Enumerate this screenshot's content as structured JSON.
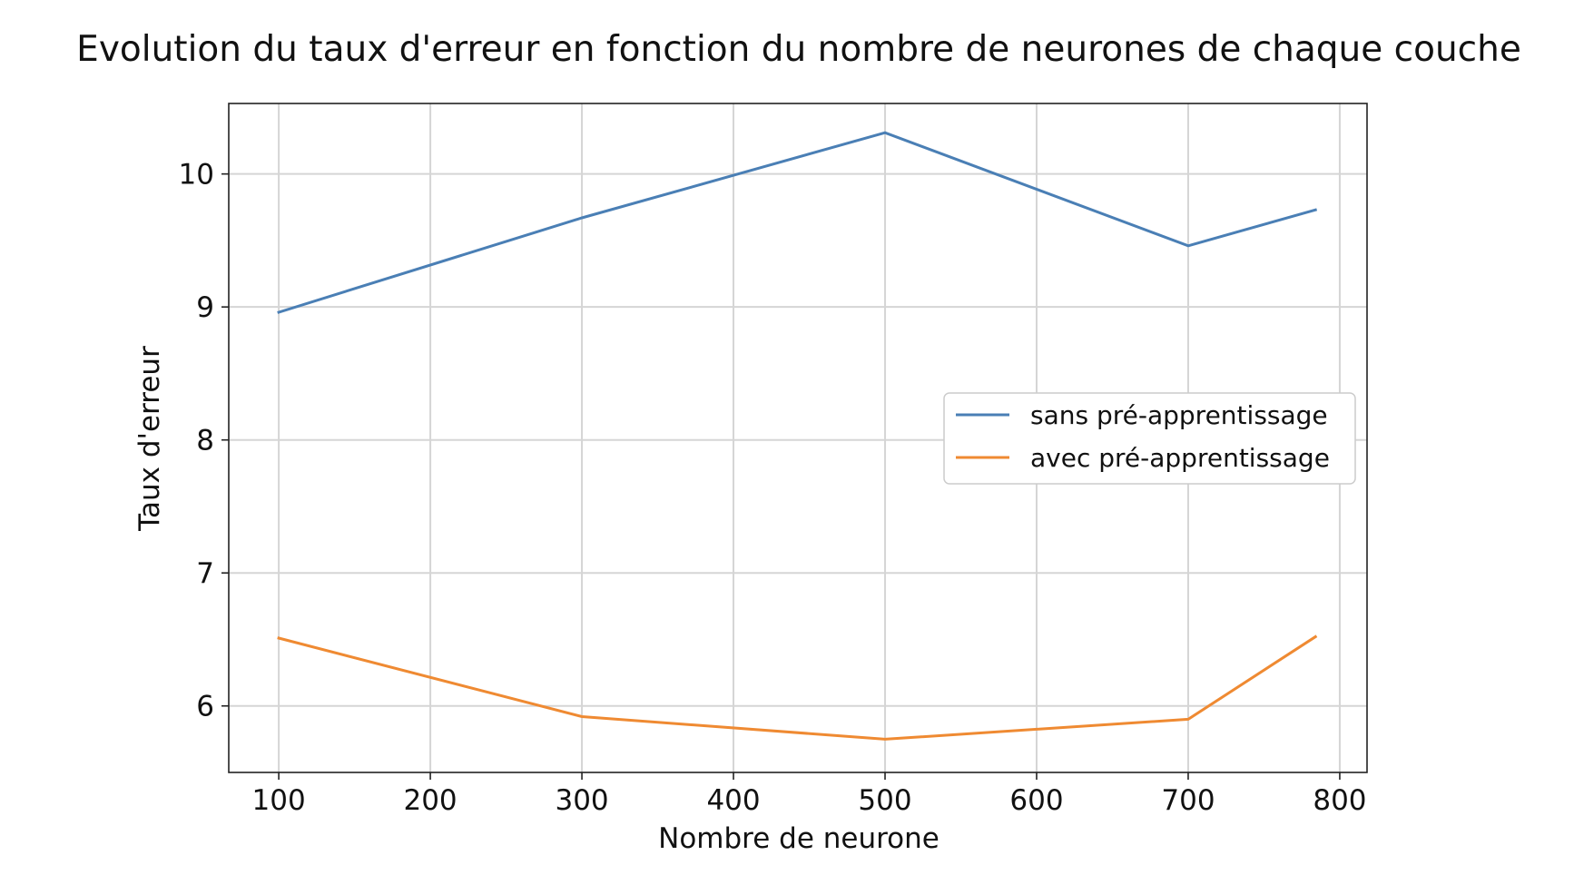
{
  "chart_data": {
    "type": "line",
    "title": "Evolution du taux d'erreur en fonction du nombre de neurones de chaque couche",
    "xlabel": "Nombre de neurone",
    "ylabel": "Taux d'erreur",
    "x": [
      100,
      300,
      500,
      700,
      784
    ],
    "xlim": [
      67,
      818
    ],
    "ylim": [
      5.5,
      10.53
    ],
    "x_ticks": [
      100,
      200,
      300,
      400,
      500,
      600,
      700,
      800
    ],
    "y_ticks": [
      6,
      7,
      8,
      9,
      10
    ],
    "x_tick_labels": [
      "100",
      "200",
      "300",
      "400",
      "500",
      "600",
      "700",
      "800"
    ],
    "y_tick_labels": [
      "6",
      "7",
      "8",
      "9",
      "10"
    ],
    "grid": true,
    "legend_position": "center-right",
    "series": [
      {
        "name": "sans pré-apprentissage",
        "color": "#4a7fb5",
        "values": [
          8.96,
          9.67,
          10.31,
          9.46,
          9.73
        ]
      },
      {
        "name": "avec pré-apprentissage",
        "color": "#ef8a32",
        "values": [
          6.51,
          5.92,
          5.75,
          5.9,
          6.52
        ]
      }
    ]
  }
}
